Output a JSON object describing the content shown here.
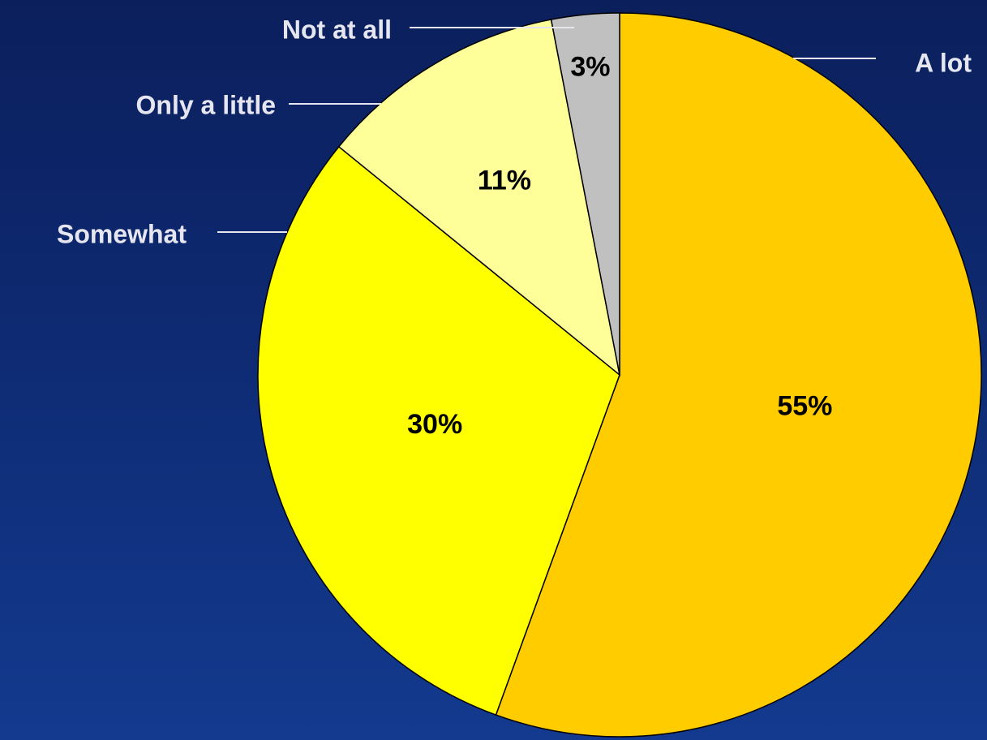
{
  "chart_data": {
    "type": "pie",
    "title": "",
    "start_angle_deg": 0,
    "direction": "clockwise",
    "slices": [
      {
        "label": "A lot",
        "value": 55,
        "value_label": "55%",
        "color": "#ffcc00"
      },
      {
        "label": "Somewhat",
        "value": 30,
        "value_label": "30%",
        "color": "#ffff00"
      },
      {
        "label": "Only a little",
        "value": 11,
        "value_label": "11%",
        "color": "#ffff99"
      },
      {
        "label": "Not at all",
        "value": 3,
        "value_label": "3%",
        "color": "#c0c0c0"
      }
    ],
    "label_color": "#e6e6f0",
    "value_label_color": "#000000"
  }
}
